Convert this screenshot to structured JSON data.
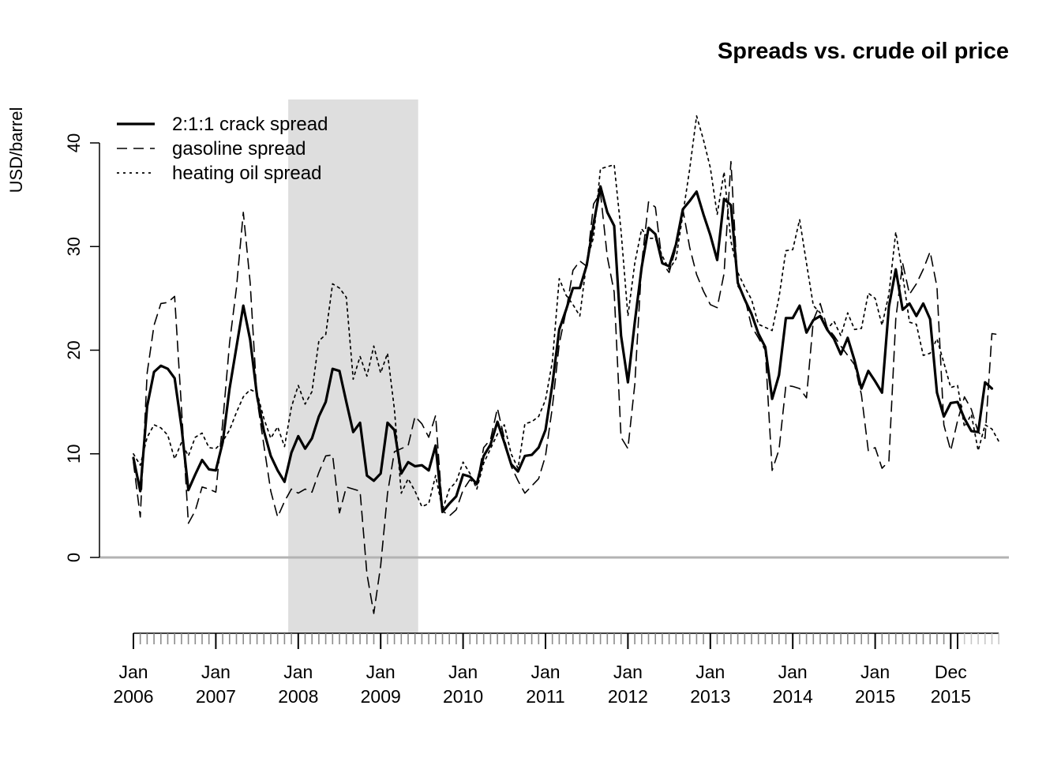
{
  "chart_data": {
    "type": "line",
    "title": "Spreads vs. crude oil price",
    "ylabel": "USD/barrel",
    "xlabel": "",
    "ylim": [
      -7,
      44
    ],
    "xlim": [
      "2006-01",
      "2016-03"
    ],
    "y_ticks": [
      0,
      10,
      20,
      30,
      40
    ],
    "x_tick_labels": [
      {
        "month": "Jan",
        "year": "2006",
        "date": "2006-01"
      },
      {
        "month": "Jan",
        "year": "2007",
        "date": "2007-01"
      },
      {
        "month": "Jan",
        "year": "2008",
        "date": "2008-01"
      },
      {
        "month": "Jan",
        "year": "2009",
        "date": "2009-01"
      },
      {
        "month": "Jan",
        "year": "2010",
        "date": "2010-01"
      },
      {
        "month": "Jan",
        "year": "2011",
        "date": "2011-01"
      },
      {
        "month": "Jan",
        "year": "2012",
        "date": "2012-01"
      },
      {
        "month": "Jan",
        "year": "2013",
        "date": "2013-01"
      },
      {
        "month": "Jan",
        "year": "2014",
        "date": "2014-01"
      },
      {
        "month": "Jan",
        "year": "2015",
        "date": "2015-01"
      },
      {
        "month": "Dec",
        "year": "2015",
        "date": "2015-12"
      }
    ],
    "recession_shading": {
      "start": "2007-12",
      "end": "2009-06"
    },
    "zero_line": true,
    "grid": false,
    "legend_position": "top-left",
    "x_start": "2006-01",
    "x_step": "1 month",
    "series": [
      {
        "name": "2:1:1 crack spread",
        "style": "solid",
        "values": [
          9.6,
          6.4,
          14.6,
          17.9,
          18.5,
          18.2,
          17.3,
          12.6,
          6.5,
          8.0,
          9.4,
          8.5,
          8.4,
          11.1,
          16.3,
          20.3,
          24.3,
          21.0,
          15.6,
          12.2,
          9.8,
          8.4,
          7.3,
          10.1,
          11.7,
          10.5,
          11.5,
          13.6,
          15.0,
          18.2,
          18.0,
          15.0,
          12.1,
          13.0,
          7.9,
          7.4,
          8.1,
          13.0,
          12.3,
          8.1,
          9.2,
          8.8,
          8.9,
          8.4,
          10.8,
          4.4,
          5.2,
          5.9,
          8.0,
          7.8,
          7.1,
          9.8,
          10.9,
          13.1,
          11.1,
          9.0,
          8.3,
          9.8,
          9.9,
          10.6,
          12.3,
          16.7,
          22.0,
          23.9,
          26.0,
          26.0,
          28.2,
          32.2,
          35.8,
          33.3,
          32.0,
          21.4,
          16.9,
          22.7,
          28.0,
          31.8,
          31.2,
          28.4,
          28.1,
          30.2,
          33.6,
          34.4,
          35.3,
          33.1,
          31.1,
          28.7,
          34.6,
          34.0,
          26.5,
          24.9,
          23.5,
          21.6,
          20.3,
          15.3,
          17.6,
          23.1,
          23.1,
          24.3,
          21.7,
          22.9,
          23.3,
          22.0,
          21.1,
          19.6,
          21.2,
          19.0,
          16.3,
          18.0,
          17.0,
          15.9,
          24.2,
          27.8,
          23.9,
          24.5,
          23.3,
          24.5,
          23.0,
          15.9,
          13.6,
          14.9,
          15.0,
          13.4,
          12.2,
          12.1,
          16.9,
          16.3
        ]
      },
      {
        "name": "gasoline spread",
        "style": "dashed",
        "values": [
          9.2,
          3.9,
          17.8,
          22.4,
          24.5,
          24.6,
          25.2,
          14.4,
          3.3,
          4.5,
          6.8,
          6.6,
          6.3,
          13.0,
          20.7,
          26.0,
          33.3,
          26.5,
          15.3,
          10.8,
          6.4,
          3.9,
          5.4,
          6.6,
          6.2,
          6.6,
          6.3,
          8.2,
          9.8,
          9.9,
          4.3,
          6.8,
          6.6,
          6.4,
          -1.6,
          -5.4,
          -0.8,
          6.2,
          10.2,
          10.5,
          10.8,
          13.6,
          12.9,
          11.6,
          13.7,
          4.5,
          4.0,
          4.6,
          6.5,
          7.5,
          7.0,
          10.6,
          11.4,
          14.4,
          11.5,
          8.8,
          7.4,
          6.2,
          6.9,
          7.6,
          9.8,
          14.5,
          20.6,
          23.8,
          27.7,
          28.6,
          28.1,
          34.1,
          35.2,
          29.0,
          25.6,
          11.6,
          10.5,
          16.7,
          28.3,
          34.3,
          33.8,
          28.4,
          27.5,
          29.9,
          33.6,
          29.9,
          27.3,
          25.7,
          24.4,
          24.1,
          27.4,
          38.2,
          26.2,
          25.1,
          22.3,
          21.2,
          20.0,
          8.4,
          10.4,
          16.6,
          16.5,
          16.3,
          15.4,
          22.9,
          24.5,
          22.2,
          21.4,
          20.4,
          19.5,
          18.6,
          15.7,
          10.3,
          10.6,
          8.6,
          9.3,
          23.0,
          28.4,
          25.4,
          26.4,
          27.8,
          29.5,
          26.1,
          12.8,
          10.3,
          13.2,
          15.5,
          14.3,
          12.1,
          11.5,
          21.6,
          21.5
        ]
      },
      {
        "name": "heating oil spread",
        "style": "dotted",
        "values": [
          10.0,
          8.9,
          11.6,
          12.8,
          12.5,
          11.8,
          9.5,
          11.1,
          9.8,
          11.6,
          12.0,
          10.6,
          10.5,
          11.2,
          12.3,
          14.0,
          15.5,
          16.2,
          15.9,
          13.4,
          11.5,
          12.6,
          10.7,
          14.5,
          16.6,
          14.8,
          16.0,
          20.9,
          21.5,
          26.4,
          26.0,
          25.1,
          17.2,
          19.4,
          17.5,
          20.4,
          17.8,
          19.7,
          14.3,
          6.2,
          7.6,
          6.4,
          4.9,
          5.2,
          7.9,
          4.6,
          6.6,
          7.3,
          9.2,
          8.1,
          6.6,
          9.1,
          10.5,
          11.9,
          12.8,
          10.0,
          8.6,
          12.9,
          13.1,
          13.6,
          15.2,
          18.9,
          26.9,
          25.3,
          24.4,
          23.3,
          28.6,
          30.9,
          37.5,
          37.7,
          37.9,
          31.5,
          23.3,
          28.4,
          31.7,
          30.8,
          30.8,
          29.1,
          27.8,
          28.8,
          33.1,
          37.5,
          42.6,
          40.3,
          37.6,
          33.1,
          37.2,
          30.5,
          27.5,
          26.1,
          24.9,
          22.5,
          22.2,
          21.9,
          25.1,
          29.6,
          29.7,
          32.6,
          28.4,
          24.3,
          23.6,
          22.0,
          22.8,
          21.4,
          23.6,
          22.0,
          22.1,
          25.5,
          25.0,
          22.4,
          25.4,
          31.4,
          27.3,
          22.7,
          22.5,
          19.5,
          19.7,
          21.1,
          18.8,
          16.4,
          16.6,
          12.6,
          13.8,
          10.3,
          12.8,
          12.4,
          11.2
        ]
      }
    ]
  }
}
